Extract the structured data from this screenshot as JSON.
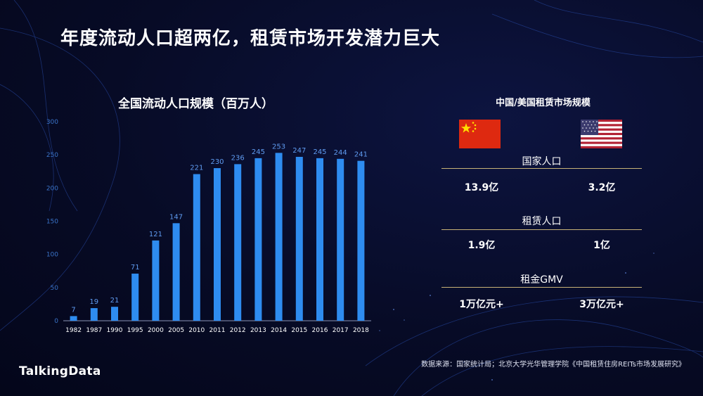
{
  "slide": {
    "title": "年度流动人口超两亿，租赁市场开发潜力巨大",
    "source": "数据来源：国家统计局；北京大学光华管理学院《中国租赁住房REITs市场发展研究》",
    "logo": "TalkingData"
  },
  "chart_data": {
    "type": "bar",
    "title": "全国流动人口规模（百万人）",
    "categories": [
      "1982",
      "1987",
      "1990",
      "1995",
      "2000",
      "2005",
      "2010",
      "2011",
      "2012",
      "2013",
      "2014",
      "2015",
      "2016",
      "2017",
      "2018"
    ],
    "values": [
      7,
      19,
      21,
      71,
      121,
      147,
      221,
      230,
      236,
      245,
      253,
      247,
      245,
      244,
      241
    ],
    "ylim": [
      0,
      300
    ],
    "yticks": [
      0,
      50,
      100,
      150,
      200,
      250,
      300
    ],
    "xlabel": "",
    "ylabel": "",
    "grid": false,
    "bar_color": "#2e8cf0"
  },
  "comparison": {
    "title": "中国/美国租赁市场规模",
    "flags": [
      "china-flag",
      "usa-flag"
    ],
    "metrics": [
      {
        "label": "国家人口",
        "china": "13.9亿",
        "usa": "3.2亿"
      },
      {
        "label": "租赁人口",
        "china": "1.9亿",
        "usa": "1亿"
      },
      {
        "label": "租金GMV",
        "china": "1万亿元+",
        "usa": "3万亿元+"
      }
    ]
  }
}
